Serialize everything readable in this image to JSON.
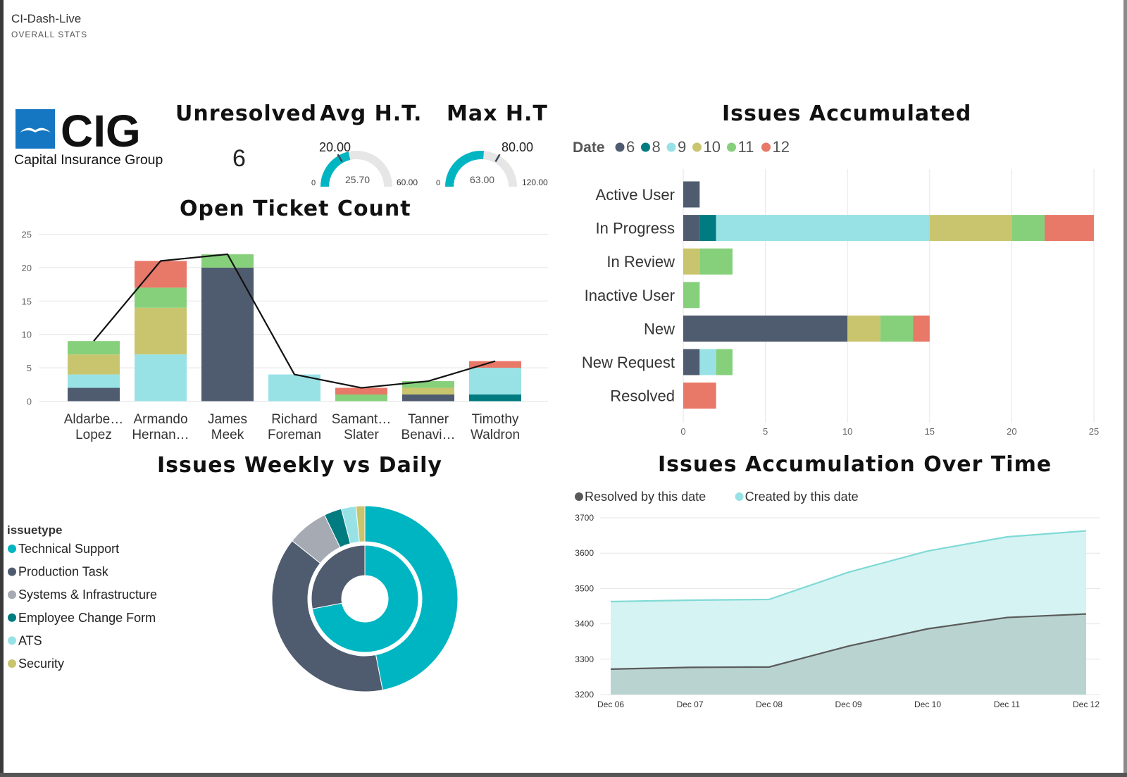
{
  "app": {
    "title": "CI-Dash-Live",
    "subtitle": "OVERALL STATS"
  },
  "logo": {
    "brand": "CIG",
    "tagline": "Capital Insurance Group"
  },
  "kpis": {
    "unresolved": {
      "title": "Unresolved",
      "value": "6"
    },
    "avg_ht": {
      "title": "Avg H.T.",
      "target": "20.00",
      "value": "25.70",
      "min": "0",
      "max": "60.00",
      "value_num": 25.7,
      "target_num": 20,
      "max_num": 60
    },
    "max_ht": {
      "title": "Max H.T",
      "target": "80.00",
      "value": "63.00",
      "min": "0",
      "max": "120.00",
      "value_num": 63,
      "target_num": 80,
      "max_num": 120
    }
  },
  "colors": {
    "6": "#4f5b6e",
    "8": "#007b80",
    "9": "#98e2e6",
    "10": "#c9c56f",
    "11": "#86d07b",
    "12": "#e87868",
    "technical": "#00b5c2",
    "production": "#4f5b6e",
    "systems": "#a6abb3",
    "employee": "#007b80",
    "ats": "#98e2e6",
    "security": "#c9c56f",
    "resolved_line": "#5a5a5a",
    "resolved_fill": "#b7d1ce",
    "created_line": "#7fdad6",
    "created_fill": "#d5f3f2"
  },
  "open_tickets": {
    "title": "Open Ticket Count",
    "chart_data": {
      "type": "bar",
      "stacked": true,
      "categories": [
        [
          "Aldarbe…",
          "Lopez"
        ],
        [
          "Armando",
          "Hernan…"
        ],
        [
          "James",
          "Meek"
        ],
        [
          "Richard",
          "Foreman"
        ],
        [
          "Samant…",
          "Slater"
        ],
        [
          "Tanner",
          "Benavi…"
        ],
        [
          "Timothy",
          "Waldron"
        ]
      ],
      "series": [
        {
          "key": "6",
          "values": [
            2,
            0,
            20,
            0,
            0,
            1,
            0
          ]
        },
        {
          "key": "8",
          "values": [
            0,
            0,
            0,
            0,
            0,
            0,
            1
          ]
        },
        {
          "key": "9",
          "values": [
            2,
            7,
            0,
            4,
            0,
            0,
            4
          ]
        },
        {
          "key": "10",
          "values": [
            3,
            7,
            0,
            0,
            0,
            1,
            0
          ]
        },
        {
          "key": "11",
          "values": [
            2,
            3,
            2,
            0,
            1,
            1,
            0
          ]
        },
        {
          "key": "12",
          "values": [
            0,
            4,
            0,
            0,
            1,
            0,
            1
          ]
        }
      ],
      "line": [
        9,
        21,
        22,
        4,
        2,
        3,
        6
      ],
      "yticks": [
        0,
        5,
        10,
        15,
        20,
        25
      ],
      "ylim": [
        0,
        25
      ]
    }
  },
  "issues_accumulated": {
    "title": "Issues Accumulated",
    "legend_title": "Date",
    "chart_data": {
      "type": "bar",
      "orientation": "horizontal",
      "stacked": true,
      "categories": [
        "Active User",
        "In Progress",
        "In Review",
        "Inactive User",
        "New",
        "New Request",
        "Resolved"
      ],
      "series": [
        {
          "name": "6",
          "values": [
            1,
            1,
            0,
            0,
            10,
            1,
            0
          ]
        },
        {
          "name": "8",
          "values": [
            0,
            1,
            0,
            0,
            0,
            0,
            0
          ]
        },
        {
          "name": "9",
          "values": [
            0,
            13,
            0,
            0,
            0,
            1,
            0
          ]
        },
        {
          "name": "10",
          "values": [
            0,
            5,
            1,
            0,
            2,
            0,
            0
          ]
        },
        {
          "name": "11",
          "values": [
            0,
            2,
            2,
            1,
            2,
            1,
            0
          ]
        },
        {
          "name": "12",
          "values": [
            0,
            3,
            0,
            0,
            1,
            0,
            2
          ]
        }
      ],
      "xticks": [
        0,
        5,
        10,
        15,
        20,
        25
      ],
      "xlim": [
        0,
        25
      ],
      "legend_position": "top-left"
    }
  },
  "weekly_daily": {
    "title": "Issues Weekly vs Daily",
    "legend_title": "issuetype",
    "chart_data": {
      "type": "pie",
      "donut": true,
      "categories": [
        "Technical Support",
        "Production Task",
        "Systems & Infrastructure",
        "Employee Change Form",
        "ATS",
        "Security"
      ],
      "outer": [
        46,
        38,
        7,
        3,
        2.5,
        1.5
      ],
      "inner": [
        72,
        28,
        0,
        0,
        0,
        0
      ],
      "legend_position": "left"
    }
  },
  "accumulation": {
    "title": "Issues Accumulation Over Time",
    "chart_data": {
      "type": "area",
      "x": [
        "Dec 06",
        "Dec 07",
        "Dec 08",
        "Dec 09",
        "Dec 10",
        "Dec 11",
        "Dec 12"
      ],
      "series": [
        {
          "name": "Resolved by this date",
          "values": [
            3272,
            3277,
            3278,
            3337,
            3386,
            3418,
            3428
          ]
        },
        {
          "name": "Created by this date",
          "values": [
            3463,
            3467,
            3469,
            3546,
            3606,
            3646,
            3663
          ]
        }
      ],
      "yticks": [
        3200,
        3300,
        3400,
        3500,
        3600,
        3700
      ],
      "ylim": [
        3200,
        3700
      ],
      "legend_position": "top-left"
    }
  }
}
